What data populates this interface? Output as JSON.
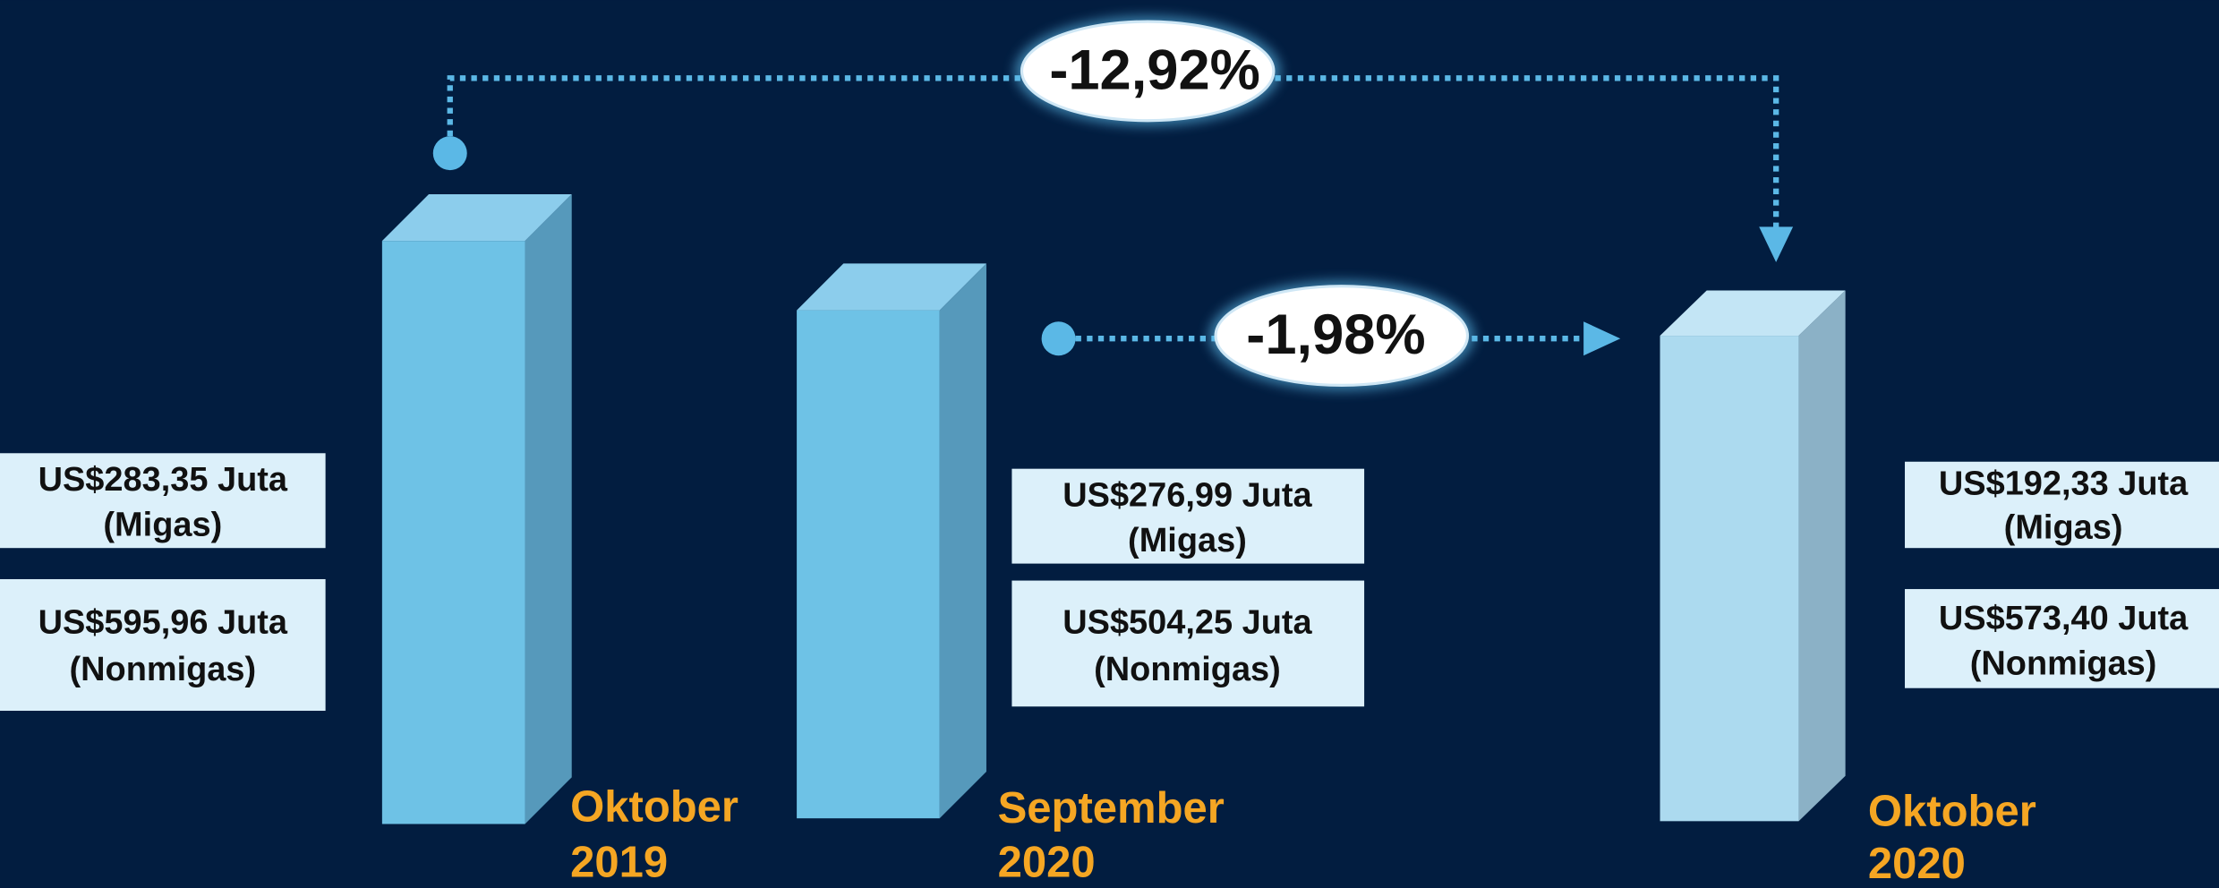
{
  "periods": [
    {
      "month": "Oktober",
      "year": "2019",
      "migas": "US$283,35 Juta",
      "migas_note": "(Migas)",
      "nonmigas": "US$595,96 Juta",
      "nonmigas_note": "(Nonmigas)"
    },
    {
      "month": "September",
      "year": "2020",
      "migas": "US$276,99 Juta",
      "migas_note": "(Migas)",
      "nonmigas": "US$504,25 Juta",
      "nonmigas_note": "(Nonmigas)"
    },
    {
      "month": "Oktober",
      "year": "2020",
      "migas": "US$192,33 Juta",
      "migas_note": "(Migas)",
      "nonmigas": "US$573,40 Juta",
      "nonmigas_note": "(Nonmigas)"
    }
  ],
  "changes": [
    {
      "label": "-12,92%"
    },
    {
      "label": "-1,98%"
    }
  ]
}
